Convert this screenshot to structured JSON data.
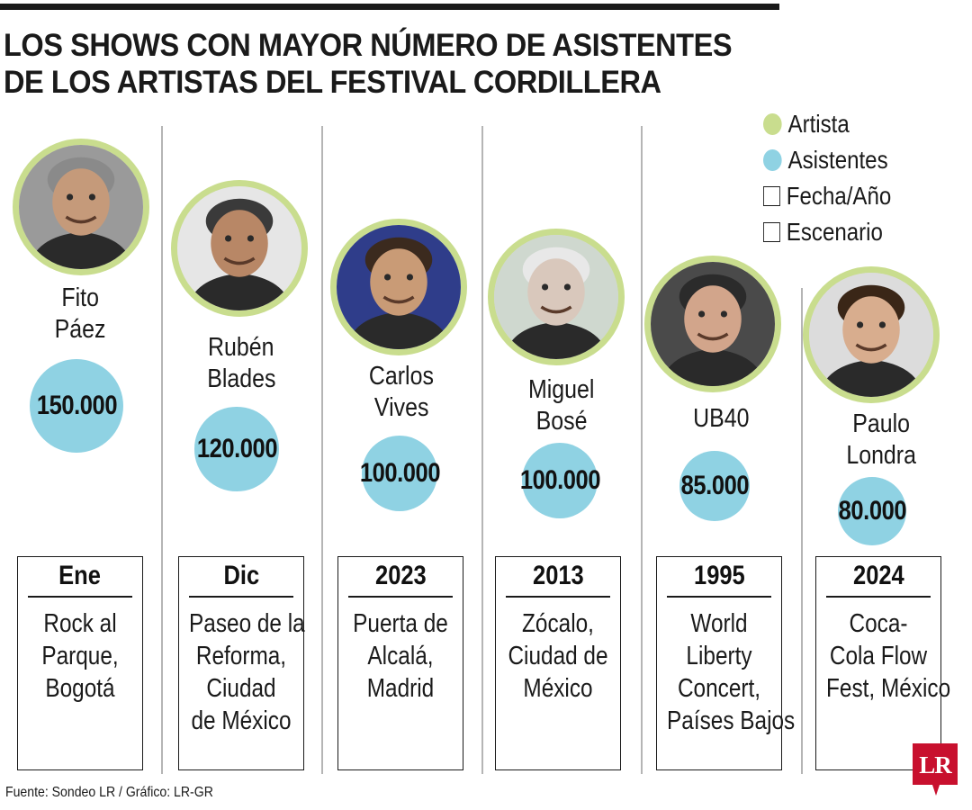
{
  "title_lines": [
    "LOS SHOWS CON MAYOR NÚMERO DE ASISTENTES",
    "DE LOS ARTISTAS DEL FESTIVAL CORDILLERA"
  ],
  "legend": [
    {
      "label": "Artista",
      "kind": "dot",
      "color": "#c9dd8e"
    },
    {
      "label": "Asistentes",
      "kind": "dot",
      "color": "#8fd2e3"
    },
    {
      "label": "Fecha/Año",
      "kind": "square"
    },
    {
      "label": "Escenario",
      "kind": "square"
    }
  ],
  "colors": {
    "artist_ring": "#c9dd8e",
    "attendance_bubble": "#8fd2e3",
    "logo_red": "#c8102e",
    "text": "#1a1a1a"
  },
  "chart_data": {
    "type": "bubble",
    "title": "LOS SHOWS CON MAYOR NÚMERO DE ASISTENTES DE LOS ARTISTAS DEL FESTIVAL CORDILLERA",
    "value_label": "Asistentes",
    "series": [
      {
        "artist": "Fito Páez",
        "name_lines": [
          "Fito",
          "Páez"
        ],
        "attendees": 150000,
        "attendees_label": "150.000",
        "date": "Ene",
        "venue_lines": [
          "Rock al",
          "Parque,",
          "Bogotá"
        ]
      },
      {
        "artist": "Rubén Blades",
        "name_lines": [
          "Rubén",
          "Blades"
        ],
        "attendees": 120000,
        "attendees_label": "120.000",
        "date": "Dic",
        "venue_lines": [
          "Paseo de la",
          "Reforma,",
          "Ciudad",
          "de México"
        ]
      },
      {
        "artist": "Carlos Vives",
        "name_lines": [
          "Carlos",
          "Vives"
        ],
        "attendees": 100000,
        "attendees_label": "100.000",
        "date": "2023",
        "venue_lines": [
          "Puerta de",
          "Alcalá,",
          "Madrid"
        ]
      },
      {
        "artist": "Miguel Bosé",
        "name_lines": [
          "Miguel",
          "Bosé"
        ],
        "attendees": 100000,
        "attendees_label": "100.000",
        "date": "2013",
        "venue_lines": [
          "Zócalo,",
          "Ciudad de",
          "México"
        ]
      },
      {
        "artist": "UB40",
        "name_lines": [
          "UB40"
        ],
        "attendees": 85000,
        "attendees_label": "85.000",
        "date": "1995",
        "venue_lines": [
          "World",
          "Liberty",
          "Concert,",
          "Países Bajos"
        ]
      },
      {
        "artist": "Paulo Londra",
        "name_lines": [
          "Paulo",
          "Londra"
        ],
        "attendees": 80000,
        "attendees_label": "80.000",
        "date": "2024",
        "venue_lines": [
          "Coca-",
          "Cola Flow",
          "Fest, México"
        ]
      }
    ]
  },
  "source": "Fuente: Sondeo LR / Gráfico: LR-GR",
  "logo_text": "LR"
}
